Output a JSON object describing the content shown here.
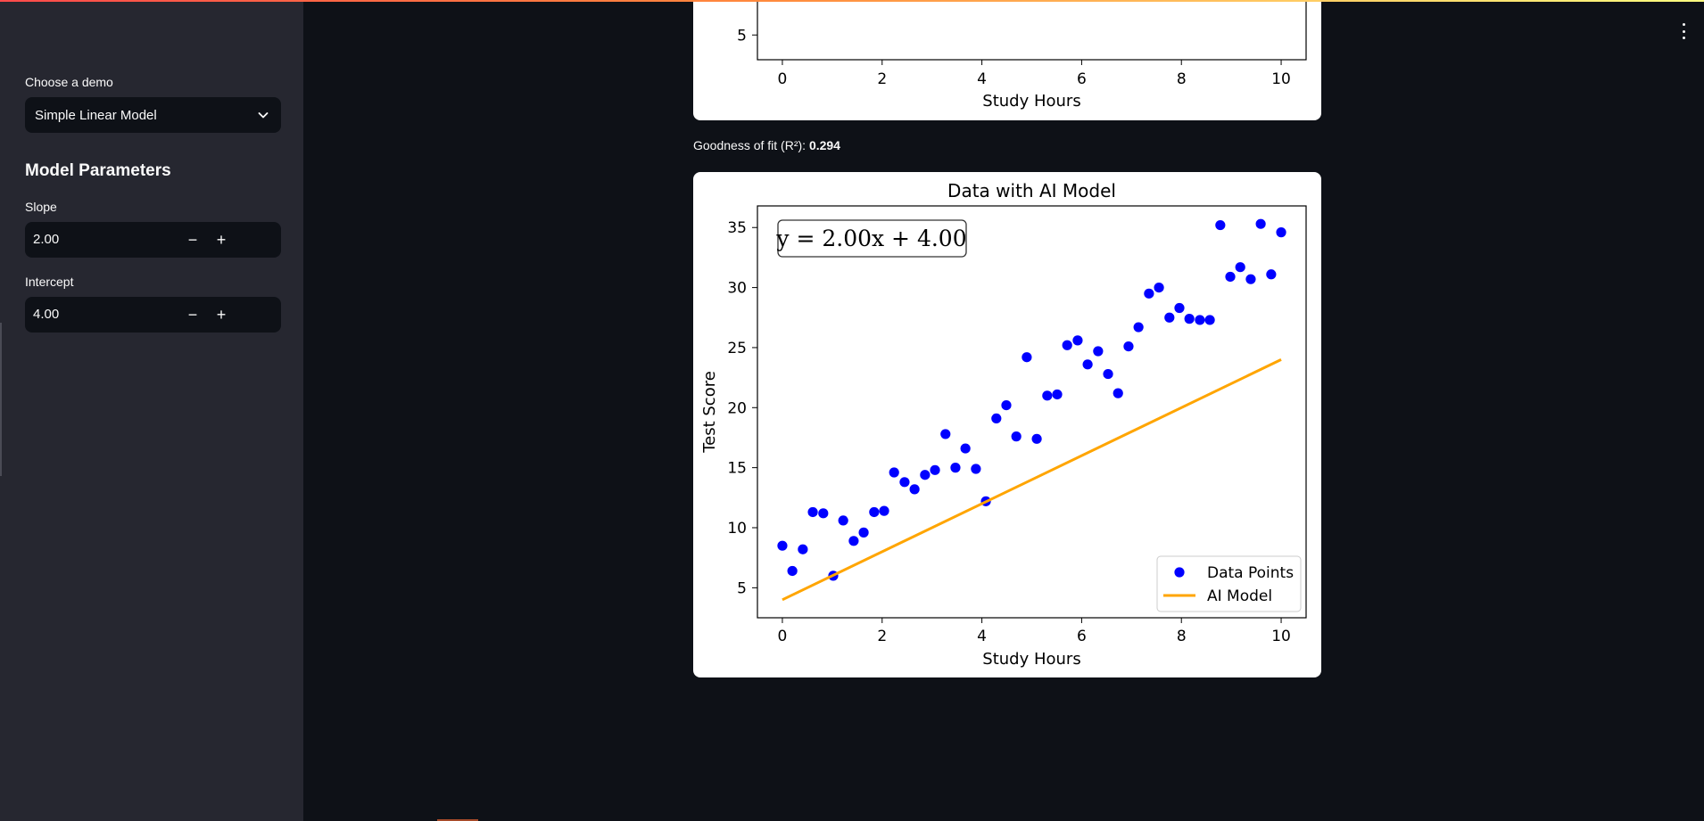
{
  "sidebar": {
    "demo_label": "Choose a demo",
    "demo_value": "Simple Linear Model",
    "section_title": "Model Parameters",
    "slope": {
      "label": "Slope",
      "value": "2.00",
      "decrement": "−",
      "increment": "+"
    },
    "intercept": {
      "label": "Intercept",
      "value": "4.00",
      "decrement": "−",
      "increment": "+"
    }
  },
  "fit": {
    "label": "Goodness of fit (R²): ",
    "value": "0.294"
  },
  "chart_data": [
    {
      "type": "scatter",
      "title": "",
      "xlabel": "Study Hours",
      "xlim": [
        -0.5,
        10.5
      ],
      "xticks": [
        "0",
        "2",
        "4",
        "6",
        "8",
        "10"
      ],
      "ytick_visible": "5",
      "y_value_visible": 5,
      "ylim": [
        4.8,
        5.5
      ],
      "ylabel": ""
    },
    {
      "type": "scatter",
      "title": "Data with AI Model",
      "xlabel": "Study Hours",
      "ylabel": "Test Score",
      "xlim": [
        -0.5,
        10.5
      ],
      "ylim": [
        2.5,
        36.8
      ],
      "xticks": [
        "0",
        "2",
        "4",
        "6",
        "8",
        "10"
      ],
      "yticks": [
        "5",
        "10",
        "15",
        "20",
        "25",
        "30",
        "35"
      ],
      "annotation": "y = 2.00x + 4.00",
      "legend_position": "lower-right",
      "legend": [
        "Data Points",
        "AI Model"
      ],
      "colors": {
        "points": "#0000ff",
        "line": "#ffa500"
      },
      "series": [
        {
          "name": "Data Points",
          "x": [
            0.0,
            0.2,
            0.41,
            0.61,
            0.82,
            1.02,
            1.22,
            1.43,
            1.63,
            1.84,
            2.04,
            2.24,
            2.45,
            2.65,
            2.86,
            3.06,
            3.27,
            3.47,
            3.67,
            3.88,
            4.08,
            4.29,
            4.49,
            4.69,
            4.9,
            5.1,
            5.31,
            5.51,
            5.71,
            5.92,
            6.12,
            6.33,
            6.53,
            6.73,
            6.94,
            7.14,
            7.35,
            7.55,
            7.76,
            7.96,
            8.16,
            8.37,
            8.57,
            8.78,
            8.98,
            9.18,
            9.39,
            9.59,
            9.8,
            10.0
          ],
          "y": [
            8.5,
            6.4,
            8.2,
            11.3,
            11.2,
            6.0,
            10.6,
            8.9,
            9.6,
            11.3,
            11.4,
            14.6,
            13.8,
            13.2,
            14.4,
            14.8,
            17.8,
            15.0,
            16.6,
            14.9,
            12.2,
            19.1,
            20.2,
            17.6,
            24.2,
            17.4,
            21.0,
            21.1,
            25.2,
            25.6,
            23.6,
            24.7,
            22.8,
            21.2,
            25.1,
            26.7,
            29.5,
            30.0,
            27.5,
            28.3,
            27.4,
            27.3,
            27.3,
            35.2,
            30.9,
            31.7,
            30.7,
            35.3,
            31.1,
            34.6
          ]
        },
        {
          "name": "AI Model",
          "x": [
            0,
            10
          ],
          "y": [
            4.0,
            24.0
          ]
        }
      ]
    }
  ]
}
